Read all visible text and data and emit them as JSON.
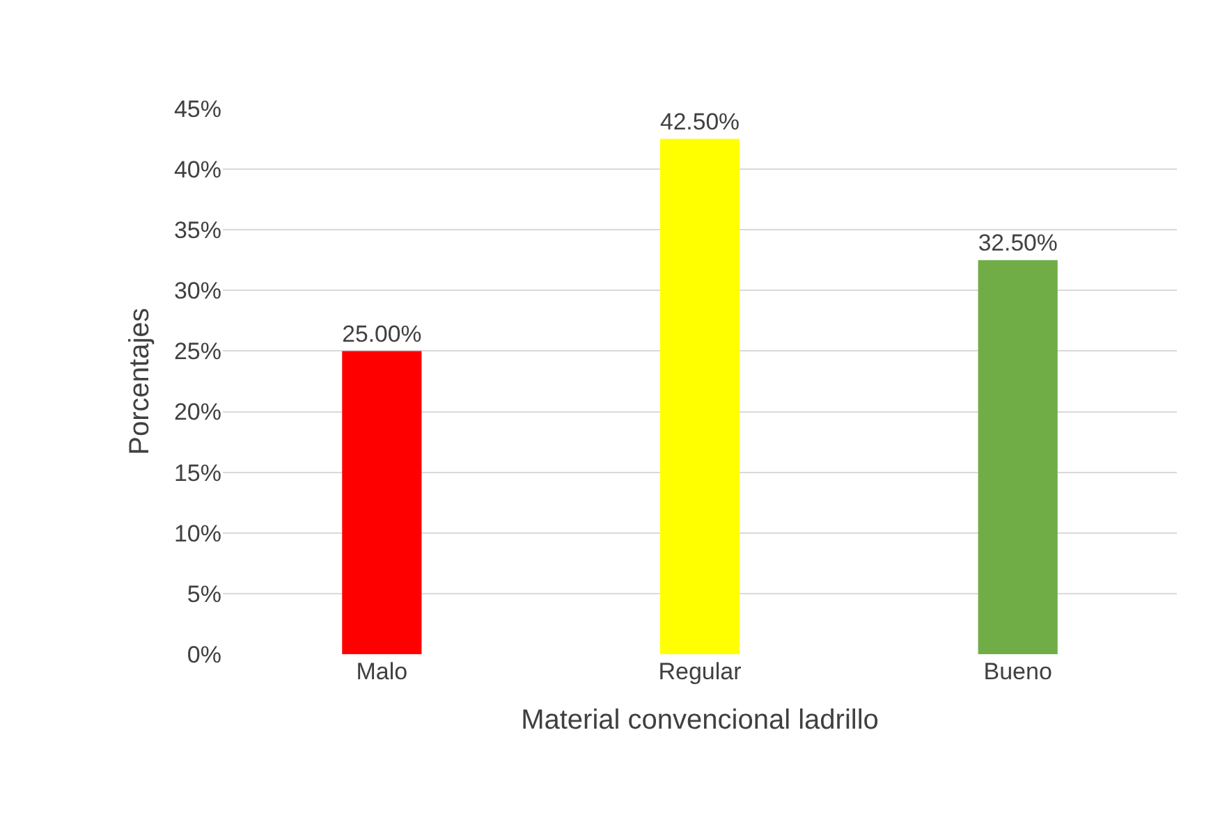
{
  "chart_data": {
    "type": "bar",
    "xlabel": "Material convencional ladrillo",
    "ylabel": "Porcentajes",
    "categories": [
      "Malo",
      "Regular",
      "Bueno"
    ],
    "values": [
      25,
      42.5,
      32.5
    ],
    "colors": [
      "#ff0000",
      "#ffff00",
      "#70ad47"
    ],
    "value_labels": [
      "25.00%",
      "42.50%",
      "32.50%"
    ],
    "ylim": [
      0,
      45
    ],
    "yticks": [
      {
        "value": 0,
        "label": "0%"
      },
      {
        "value": 5,
        "label": "5%"
      },
      {
        "value": 10,
        "label": "10%"
      },
      {
        "value": 15,
        "label": "15%"
      },
      {
        "value": 20,
        "label": "20%"
      },
      {
        "value": 25,
        "label": "25%"
      },
      {
        "value": 30,
        "label": "30%"
      },
      {
        "value": 35,
        "label": "35%"
      },
      {
        "value": 40,
        "label": "40%"
      },
      {
        "value": 45,
        "label": "45%"
      }
    ],
    "grid": "y"
  }
}
